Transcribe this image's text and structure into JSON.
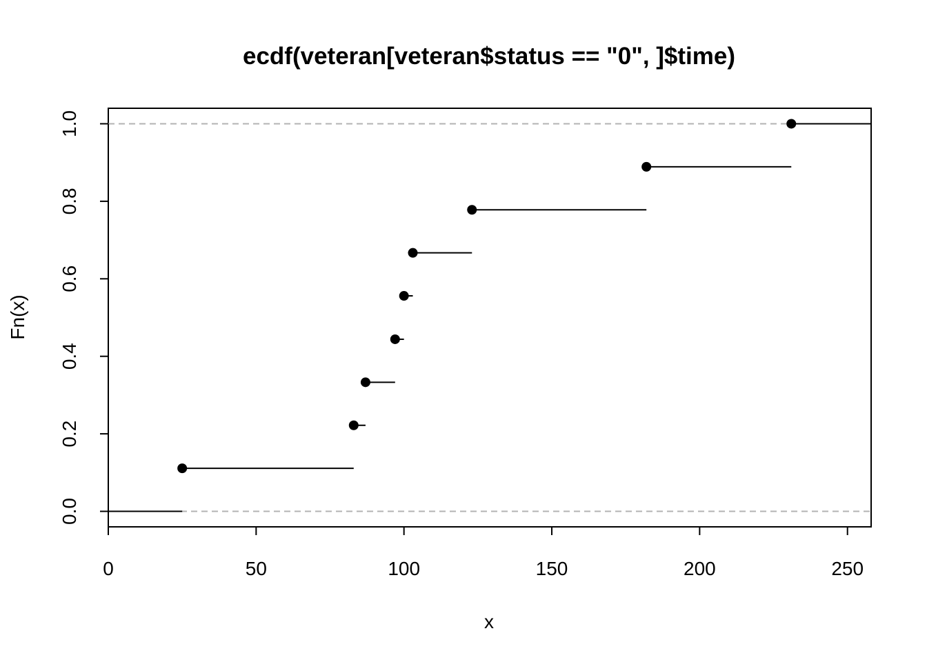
{
  "chart_data": {
    "type": "line",
    "subtype": "ecdf-step",
    "title": "ecdf(veteran[veteran$status == \"0\", ]$time)",
    "xlabel": "x",
    "ylabel": "Fn(x)",
    "xlim": [
      0,
      258
    ],
    "ylim": [
      -0.04,
      1.04
    ],
    "xticks": [
      0,
      50,
      100,
      150,
      200,
      250
    ],
    "xtick_labels": [
      "0",
      "50",
      "100",
      "150",
      "200",
      "250"
    ],
    "yticks": [
      0,
      0.2,
      0.4,
      0.6,
      0.8,
      1
    ],
    "ytick_labels": [
      "0.0",
      "0.2",
      "0.4",
      "0.6",
      "0.8",
      "1.0"
    ],
    "reference_lines": [
      0,
      1
    ],
    "grid": false,
    "series": [
      {
        "x": [
          25,
          83,
          87,
          97,
          100,
          103,
          123,
          182,
          231
        ],
        "y": [
          0.111,
          0.222,
          0.333,
          0.444,
          0.556,
          0.667,
          0.778,
          0.889,
          1.0
        ]
      }
    ]
  }
}
